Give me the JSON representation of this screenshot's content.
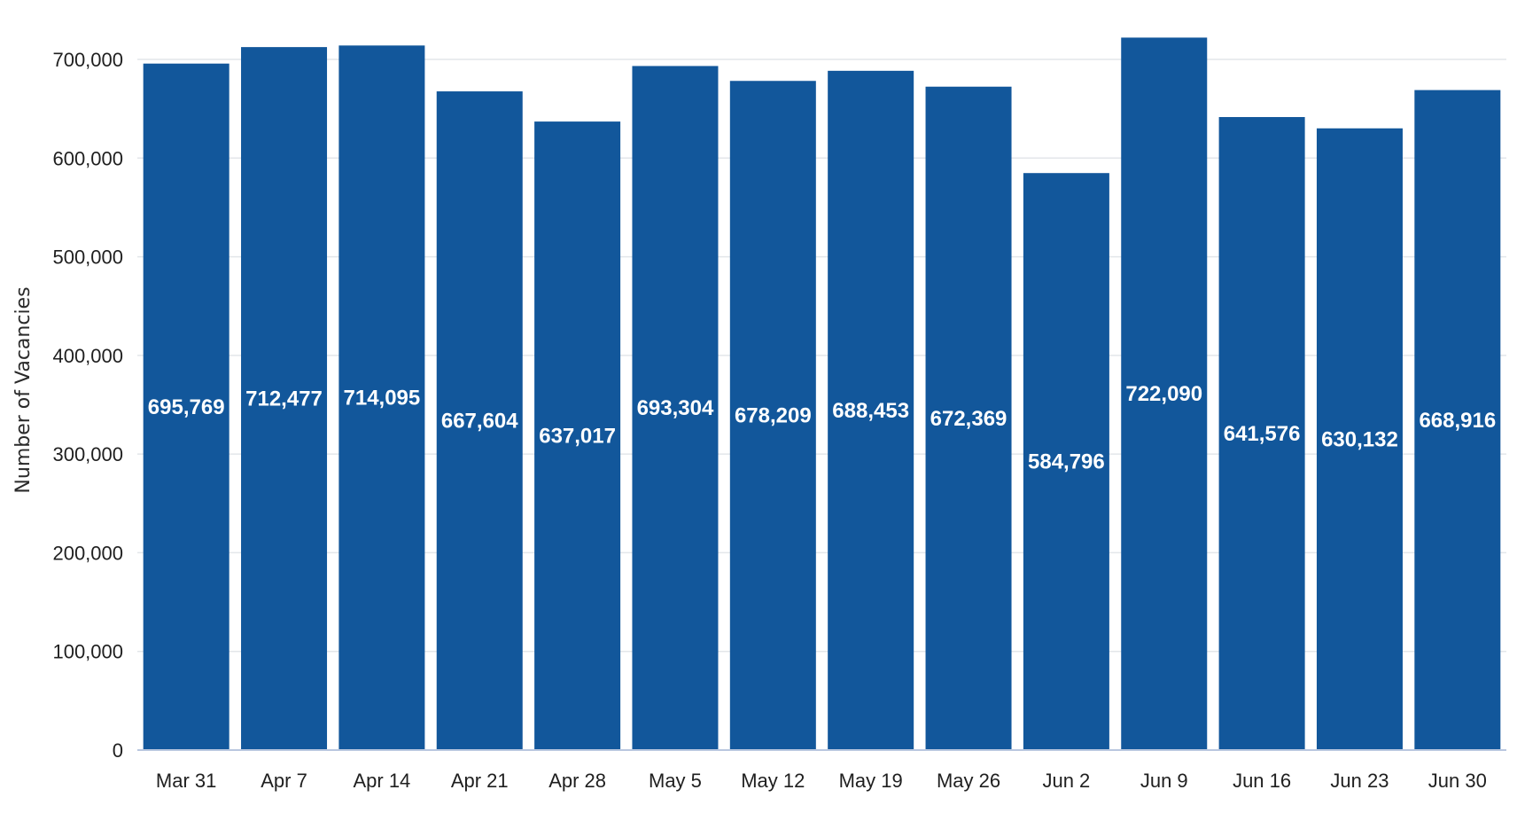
{
  "chart_data": {
    "type": "bar",
    "title": "",
    "xlabel": "",
    "ylabel": "Number of Vacancies",
    "categories": [
      "Mar 31",
      "Apr 7",
      "Apr 14",
      "Apr 21",
      "Apr 28",
      "May 5",
      "May 12",
      "May 19",
      "May 26",
      "Jun 2",
      "Jun 9",
      "Jun 16",
      "Jun 23",
      "Jun 30"
    ],
    "values": [
      695769,
      712477,
      714095,
      667604,
      637017,
      693304,
      678209,
      688453,
      672369,
      584796,
      722090,
      641576,
      630132,
      668916
    ],
    "value_labels": [
      "695,769",
      "712,477",
      "714,095",
      "667,604",
      "637,017",
      "693,304",
      "678,209",
      "688,453",
      "672,369",
      "584,796",
      "722,090",
      "641,576",
      "630,132",
      "668,916"
    ],
    "yticks": [
      0,
      100000,
      200000,
      300000,
      400000,
      500000,
      600000,
      700000
    ],
    "ytick_labels": [
      "0",
      "100,000",
      "200,000",
      "300,000",
      "400,000",
      "500,000",
      "600,000",
      "700,000"
    ],
    "ylim": [
      0,
      700000
    ],
    "grid": true,
    "legend": "none",
    "colors": {
      "bar": "#12579b",
      "grid": "#e3e6ea",
      "axis": "#b9c7df",
      "label": "#ffffff"
    }
  }
}
